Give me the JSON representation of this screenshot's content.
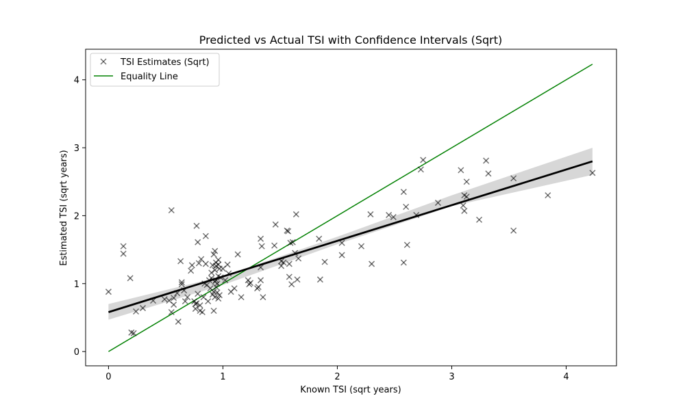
{
  "chart_data": {
    "type": "scatter",
    "title": "Predicted vs Actual TSI with Confidence Intervals (Sqrt)",
    "xlabel": "Known TSI (sqrt years)",
    "ylabel": "Estimated TSI (sqrt years)",
    "xlim": [
      -0.2,
      4.44
    ],
    "ylim": [
      -0.21,
      4.45
    ],
    "x_ticks": [
      0,
      1,
      2,
      3,
      4
    ],
    "y_ticks": [
      0,
      1,
      2,
      3,
      4
    ],
    "grid": false,
    "legend_position": "top-left",
    "legend": [
      {
        "label": "TSI Estimates (Sqrt)",
        "marker": "x",
        "color": "#000000"
      },
      {
        "label": "Equality Line",
        "marker": "line",
        "color": "#008000"
      }
    ],
    "series": [
      {
        "name": "TSI Estimates (Sqrt)",
        "kind": "scatter",
        "marker": "x",
        "color": "#000000",
        "points": [
          [
            0.0,
            0.88
          ],
          [
            0.13,
            1.55
          ],
          [
            0.13,
            1.44
          ],
          [
            0.19,
            1.08
          ],
          [
            0.2,
            0.28
          ],
          [
            0.22,
            0.27
          ],
          [
            0.24,
            0.59
          ],
          [
            0.3,
            0.64
          ],
          [
            0.39,
            0.75
          ],
          [
            0.49,
            0.77
          ],
          [
            0.53,
            0.75
          ],
          [
            0.55,
            0.58
          ],
          [
            0.55,
            2.08
          ],
          [
            0.57,
            0.79
          ],
          [
            0.57,
            0.69
          ],
          [
            0.6,
            0.86
          ],
          [
            0.61,
            0.44
          ],
          [
            0.63,
            1.33
          ],
          [
            0.64,
            0.99
          ],
          [
            0.64,
            1.02
          ],
          [
            0.66,
            0.9
          ],
          [
            0.67,
            0.74
          ],
          [
            0.69,
            0.8
          ],
          [
            0.72,
            1.19
          ],
          [
            0.73,
            1.27
          ],
          [
            0.75,
            0.74
          ],
          [
            0.76,
            0.7
          ],
          [
            0.76,
            0.63
          ],
          [
            0.77,
            0.71
          ],
          [
            0.77,
            1.85
          ],
          [
            0.78,
            1.61
          ],
          [
            0.78,
            0.85
          ],
          [
            0.79,
            1.3
          ],
          [
            0.8,
            0.6
          ],
          [
            0.8,
            0.68
          ],
          [
            0.81,
            1.36
          ],
          [
            0.82,
            0.58
          ],
          [
            0.83,
            0.8
          ],
          [
            0.84,
            1.0
          ],
          [
            0.85,
            1.29
          ],
          [
            0.85,
            1.7
          ],
          [
            0.86,
            0.98
          ],
          [
            0.87,
            0.74
          ],
          [
            0.88,
            1.05
          ],
          [
            0.89,
            0.93
          ],
          [
            0.9,
            1.08
          ],
          [
            0.9,
            1.16
          ],
          [
            0.91,
            0.84
          ],
          [
            0.91,
            1.27
          ],
          [
            0.92,
            0.6
          ],
          [
            0.92,
            0.88
          ],
          [
            0.92,
            1.43
          ],
          [
            0.93,
            1.48
          ],
          [
            0.93,
            1.2
          ],
          [
            0.93,
            1.03
          ],
          [
            0.93,
            0.8
          ],
          [
            0.94,
            1.31
          ],
          [
            0.94,
            1.26
          ],
          [
            0.94,
            1.05
          ],
          [
            0.94,
            0.95
          ],
          [
            0.95,
            0.87
          ],
          [
            0.95,
            1.0
          ],
          [
            0.96,
            1.35
          ],
          [
            0.96,
            1.28
          ],
          [
            0.96,
            1.11
          ],
          [
            0.96,
            0.78
          ],
          [
            0.97,
            0.83
          ],
          [
            0.97,
            1.22
          ],
          [
            0.98,
            1.09
          ],
          [
            1.0,
            1.22
          ],
          [
            1.02,
            1.05
          ],
          [
            1.04,
            1.28
          ],
          [
            1.05,
            1.15
          ],
          [
            1.07,
            0.88
          ],
          [
            1.1,
            0.93
          ],
          [
            1.13,
            1.43
          ],
          [
            1.16,
            0.8
          ],
          [
            1.22,
            1.05
          ],
          [
            1.23,
            0.99
          ],
          [
            1.24,
            1.01
          ],
          [
            1.3,
            0.93
          ],
          [
            1.31,
            0.95
          ],
          [
            1.33,
            1.05
          ],
          [
            1.33,
            1.24
          ],
          [
            1.33,
            1.66
          ],
          [
            1.34,
            1.55
          ],
          [
            1.35,
            0.8
          ],
          [
            1.45,
            1.56
          ],
          [
            1.46,
            1.87
          ],
          [
            1.51,
            1.33
          ],
          [
            1.51,
            1.26
          ],
          [
            1.53,
            1.31
          ],
          [
            1.56,
            1.78
          ],
          [
            1.57,
            1.77
          ],
          [
            1.58,
            1.1
          ],
          [
            1.58,
            1.29
          ],
          [
            1.59,
            1.6
          ],
          [
            1.6,
            0.99
          ],
          [
            1.61,
            1.61
          ],
          [
            1.63,
            1.45
          ],
          [
            1.64,
            2.02
          ],
          [
            1.65,
            1.06
          ],
          [
            1.66,
            1.37
          ],
          [
            1.84,
            1.66
          ],
          [
            1.85,
            1.06
          ],
          [
            1.89,
            1.32
          ],
          [
            2.04,
            1.6
          ],
          [
            2.04,
            1.42
          ],
          [
            2.21,
            1.55
          ],
          [
            2.29,
            2.02
          ],
          [
            2.3,
            1.29
          ],
          [
            2.45,
            2.01
          ],
          [
            2.49,
            1.98
          ],
          [
            2.58,
            1.31
          ],
          [
            2.58,
            2.35
          ],
          [
            2.6,
            2.13
          ],
          [
            2.61,
            1.57
          ],
          [
            2.69,
            2.01
          ],
          [
            2.73,
            2.68
          ],
          [
            2.75,
            2.82
          ],
          [
            2.88,
            2.19
          ],
          [
            3.08,
            2.67
          ],
          [
            3.1,
            2.15
          ],
          [
            3.11,
            2.3
          ],
          [
            3.11,
            2.07
          ],
          [
            3.13,
            2.5
          ],
          [
            3.13,
            2.28
          ],
          [
            3.24,
            1.94
          ],
          [
            3.3,
            2.81
          ],
          [
            3.32,
            2.62
          ],
          [
            3.54,
            2.55
          ],
          [
            3.54,
            1.78
          ],
          [
            3.84,
            2.3
          ],
          [
            4.23,
            2.63
          ]
        ]
      },
      {
        "name": "Equality Line",
        "kind": "line",
        "color": "#008000",
        "x": [
          0.0,
          4.23
        ],
        "y": [
          0.0,
          4.23
        ]
      }
    ],
    "regression": {
      "color": "#000000",
      "x": [
        0.0,
        4.23
      ],
      "y": [
        0.58,
        2.8
      ],
      "ci_color": "#b0b0b0",
      "ci_x": [
        0.0,
        1.0,
        2.0,
        3.0,
        4.23
      ],
      "ci_lower": [
        0.47,
        0.98,
        1.58,
        2.14,
        2.6
      ],
      "ci_upper": [
        0.7,
        1.11,
        1.69,
        2.3,
        3.0
      ]
    }
  }
}
